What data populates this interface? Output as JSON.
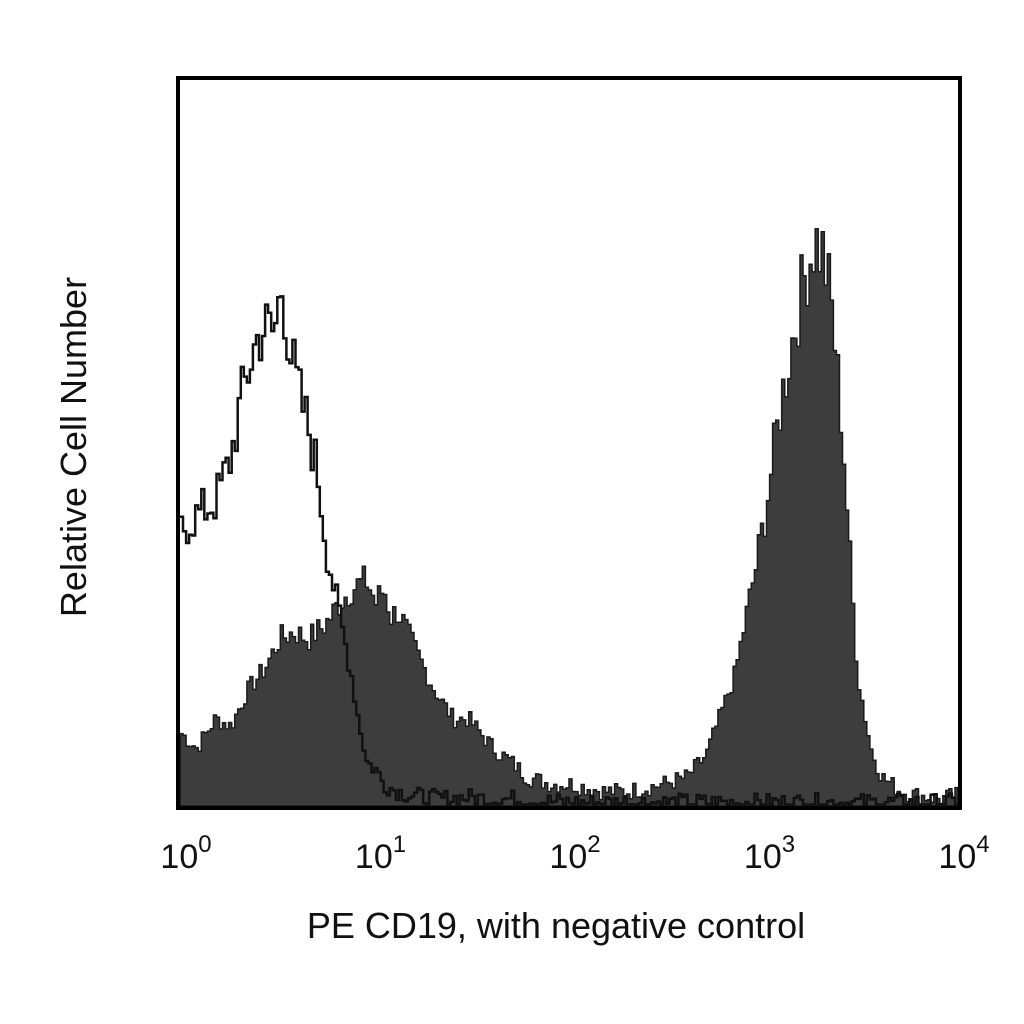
{
  "chart_data": {
    "type": "area",
    "title": "",
    "xlabel": "PE CD19, with negative control",
    "ylabel": "Relative Cell Number",
    "x_scale": "log",
    "xlim": [
      1,
      10000
    ],
    "ylim": [
      0,
      100
    ],
    "grid": false,
    "legend": "none",
    "x_ticks": [
      {
        "value": 1,
        "base": "10",
        "exp": "0"
      },
      {
        "value": 10,
        "base": "10",
        "exp": "1"
      },
      {
        "value": 100,
        "base": "10",
        "exp": "2"
      },
      {
        "value": 1000,
        "base": "10",
        "exp": "3"
      },
      {
        "value": 10000,
        "base": "10",
        "exp": "4"
      }
    ],
    "colors": {
      "filled": "#3d3d3d",
      "outline": "#111111",
      "frame": "#000000"
    },
    "series": [
      {
        "style": "outline",
        "x": [
          1,
          1.2,
          1.5,
          1.8,
          2.0,
          2.3,
          2.6,
          3.0,
          3.3,
          3.6,
          4.0,
          4.5,
          5.0,
          5.6,
          6.3,
          7.0,
          7.5,
          8.0,
          9.0,
          10,
          11,
          13,
          15,
          18,
          22,
          30,
          40,
          50,
          60,
          80,
          100
        ],
        "y": [
          38,
          40,
          42,
          48,
          55,
          62,
          66,
          65,
          72,
          63,
          57,
          52,
          46,
          35,
          28,
          22,
          18,
          13,
          6,
          5,
          3,
          2,
          1.5,
          1.2,
          1,
          1.2,
          0.9,
          1,
          0.8,
          0.6,
          0.5
        ]
      },
      {
        "style": "filled",
        "x": [
          1,
          1.2,
          1.5,
          1.8,
          2.2,
          2.7,
          3.2,
          3.8,
          4.5,
          5.5,
          6.5,
          7.5,
          9,
          10,
          11,
          12,
          13,
          15,
          17,
          20,
          25,
          30,
          40,
          50,
          60,
          80,
          100,
          150,
          200,
          300,
          400,
          500,
          600,
          700,
          800,
          900,
          1000,
          1200,
          1400,
          1600,
          1800,
          2000,
          2200,
          2500,
          2800,
          3000,
          3500,
          4000,
          5000,
          6000,
          8000,
          10000
        ],
        "y": [
          10,
          8,
          12,
          11,
          16,
          19,
          23,
          24,
          23,
          25,
          28,
          30,
          31,
          28,
          30,
          26,
          27,
          23,
          20,
          16,
          12,
          12,
          8,
          6,
          4,
          3,
          3,
          2,
          2,
          3,
          4,
          7,
          13,
          18,
          26,
          33,
          40,
          55,
          65,
          73,
          78,
          76,
          69,
          52,
          30,
          18,
          8,
          4,
          2,
          1.5,
          1,
          1.5
        ]
      }
    ]
  }
}
